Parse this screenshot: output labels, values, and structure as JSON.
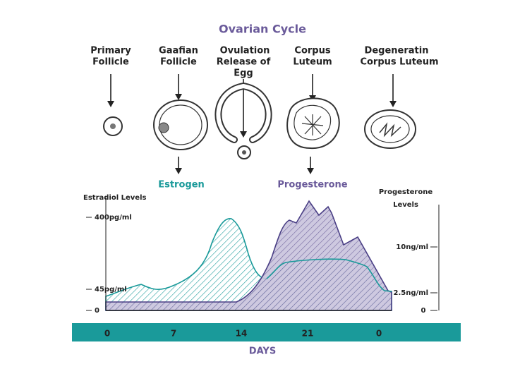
{
  "title": "Ovarian Cycle",
  "stages": [
    {
      "lines": [
        "Primary",
        "Follicle"
      ]
    },
    {
      "lines": [
        "Gaafian",
        "Follicle"
      ]
    },
    {
      "lines": [
        "Ovulation",
        "Release of",
        "Egg"
      ]
    },
    {
      "lines": [
        "Corpus",
        "Luteum"
      ]
    },
    {
      "lines": [
        "Degeneratin",
        "Corpus Luteum"
      ]
    }
  ],
  "hormones": {
    "estrogen": "Estrogen",
    "progesterone": "Progesterone"
  },
  "left_axis": {
    "title": "Estradiol Levels",
    "ticks": [
      "400pg/ml",
      "45pg/ml",
      "0"
    ]
  },
  "right_axis": {
    "title": [
      "Progesterone",
      "Levels"
    ],
    "ticks": [
      "10ng/ml",
      "2.5ng/ml",
      "0"
    ]
  },
  "days": {
    "ticks": [
      "0",
      "7",
      "14",
      "21",
      "0"
    ],
    "label": "DAYS"
  }
}
